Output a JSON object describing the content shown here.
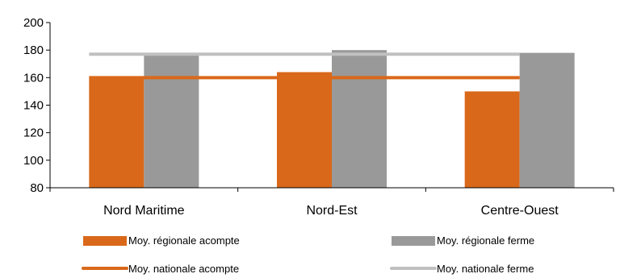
{
  "colors": {
    "regional_acompte": "#d9681a",
    "regional_ferme": "#999999",
    "national_acompte": "#d9681a",
    "national_ferme": "#c0c0c0",
    "axis": "#000000"
  },
  "chart_data": {
    "type": "bar",
    "categories": [
      "Nord Maritime",
      "Nord-Est",
      "Centre-Ouest"
    ],
    "series": [
      {
        "name": "Moy. régionale acompte",
        "values": [
          159,
          164,
          150
        ]
      },
      {
        "name": "Moy. régionale ferme",
        "values": [
          177,
          180,
          178
        ]
      }
    ],
    "reference_lines": [
      {
        "name": "Moy. nationale acompte",
        "value": 160
      },
      {
        "name": "Moy. nationale ferme",
        "value": 177
      }
    ],
    "y_ticks": [
      "80",
      "100",
      "120",
      "140",
      "160",
      "180",
      "200"
    ],
    "ylim": [
      80,
      200
    ],
    "grid": false,
    "legend_position": "bottom",
    "legend": [
      {
        "label": "Moy. régionale acompte",
        "kind": "bar",
        "color_key": "regional_acompte"
      },
      {
        "label": "Moy. régionale ferme",
        "kind": "bar",
        "color_key": "regional_ferme"
      },
      {
        "label": "Moy. nationale acompte",
        "kind": "line",
        "color_key": "national_acompte"
      },
      {
        "label": "Moy. nationale ferme",
        "kind": "line",
        "color_key": "national_ferme"
      }
    ]
  }
}
